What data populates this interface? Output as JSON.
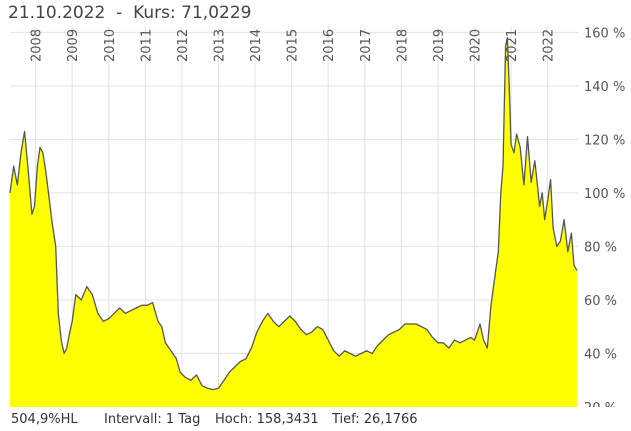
{
  "header": {
    "date": "21.10.2022",
    "separator": "-",
    "kurs_label": "Kurs:",
    "kurs_value": "71,0229"
  },
  "footer": {
    "performance": "504,9%HL",
    "interval": "Intervall: 1 Tag",
    "high": "Hoch: 158,3431",
    "low": "Tief: 26,1766"
  },
  "colors": {
    "fill": "#ffff00",
    "line": "#555555",
    "grid": "#e2e2e2"
  },
  "chart_data": {
    "type": "area",
    "title": "",
    "xlabel": "",
    "ylabel": "",
    "y_unit": "%",
    "ylim": [
      20,
      162
    ],
    "y_ticks": [
      20,
      40,
      60,
      80,
      100,
      120,
      140,
      160
    ],
    "y_tick_labels": [
      "20 %",
      "40 %",
      "60 %",
      "80 %",
      "100 %",
      "120 %",
      "140 %",
      "160 %"
    ],
    "x_ticks": [
      2008,
      2009,
      2010,
      2011,
      2012,
      2013,
      2014,
      2015,
      2016,
      2017,
      2018,
      2019,
      2020,
      2021,
      2022
    ],
    "xlim": [
      2007.3,
      2022.83
    ],
    "grid": true,
    "series": [
      {
        "x": [
          2007.3,
          2007.4,
          2007.5,
          2007.6,
          2007.7,
          2007.8,
          2007.9,
          2007.97,
          2008.05,
          2008.12,
          2008.2,
          2008.28,
          2008.36,
          2008.45,
          2008.55,
          2008.62,
          2008.7,
          2008.78,
          2008.85,
          2008.92,
          2009.0,
          2009.1,
          2009.25,
          2009.4,
          2009.55,
          2009.7,
          2009.85,
          2010.0,
          2010.15,
          2010.3,
          2010.45,
          2010.6,
          2010.75,
          2010.9,
          2011.05,
          2011.2,
          2011.35,
          2011.45,
          2011.55,
          2011.65,
          2011.75,
          2011.85,
          2011.95,
          2012.1,
          2012.25,
          2012.4,
          2012.55,
          2012.7,
          2012.85,
          2013.0,
          2013.15,
          2013.3,
          2013.45,
          2013.6,
          2013.75,
          2013.9,
          2014.05,
          2014.2,
          2014.35,
          2014.5,
          2014.65,
          2014.8,
          2014.95,
          2015.1,
          2015.25,
          2015.4,
          2015.55,
          2015.7,
          2015.85,
          2016.0,
          2016.15,
          2016.3,
          2016.45,
          2016.6,
          2016.75,
          2016.9,
          2017.05,
          2017.2,
          2017.35,
          2017.5,
          2017.65,
          2017.8,
          2017.95,
          2018.1,
          2018.25,
          2018.4,
          2018.55,
          2018.7,
          2018.85,
          2019.0,
          2019.15,
          2019.3,
          2019.45,
          2019.6,
          2019.75,
          2019.9,
          2020.0,
          2020.08,
          2020.15,
          2020.25,
          2020.35,
          2020.45,
          2020.55,
          2020.65,
          2020.72,
          2020.78,
          2020.85,
          2020.9,
          2020.95,
          2021.0,
          2021.08,
          2021.15,
          2021.25,
          2021.35,
          2021.45,
          2021.55,
          2021.65,
          2021.72,
          2021.78,
          2021.85,
          2021.92,
          2022.0,
          2022.08,
          2022.15,
          2022.25,
          2022.35,
          2022.45,
          2022.55,
          2022.65,
          2022.72,
          2022.8
        ],
        "y": [
          100,
          110,
          103,
          115,
          123,
          108,
          92,
          95,
          110,
          117,
          115,
          108,
          99,
          89,
          80,
          55,
          45,
          40,
          42,
          47,
          52,
          62,
          60,
          65,
          62,
          55,
          52,
          53,
          55,
          57,
          55,
          56,
          57,
          58,
          58,
          59,
          52,
          50,
          44,
          42,
          40,
          38,
          33,
          31,
          30,
          32,
          28,
          27,
          26.5,
          27,
          30,
          33,
          35,
          37,
          38,
          42,
          48,
          52,
          55,
          52,
          50,
          52,
          54,
          52,
          49,
          47,
          48,
          50,
          49,
          45,
          41,
          39,
          41,
          40,
          39,
          40,
          41,
          40,
          43,
          45,
          47,
          48,
          49,
          51,
          51,
          51,
          50,
          49,
          46,
          44,
          44,
          42,
          45,
          44,
          45,
          46,
          45,
          48,
          51,
          45,
          42,
          58,
          68,
          78,
          100,
          110,
          155,
          158,
          140,
          118,
          115,
          122,
          117,
          103,
          121,
          104,
          112,
          103,
          95,
          100,
          90,
          97,
          105,
          87,
          80,
          82,
          90,
          78,
          85,
          73,
          71
        ]
      }
    ]
  }
}
